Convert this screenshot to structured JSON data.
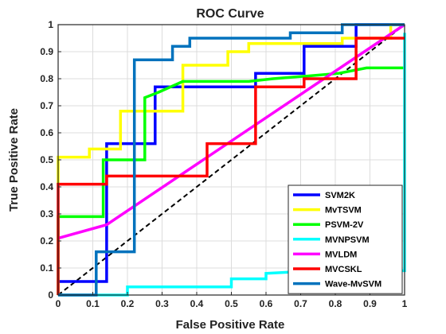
{
  "chart_data": {
    "type": "line",
    "title": "ROC Curve",
    "xlabel": "False Positive Rate",
    "ylabel": "True Positive Rate",
    "xlim": [
      0,
      1
    ],
    "ylim": [
      0,
      1
    ],
    "xticks": [
      0,
      0.1,
      0.2,
      0.3,
      0.4,
      0.5,
      0.6,
      0.7,
      0.8,
      0.9,
      1
    ],
    "yticks": [
      0,
      0.1,
      0.2,
      0.3,
      0.4,
      0.5,
      0.6,
      0.7,
      0.8,
      0.9,
      1
    ],
    "xtick_labels": [
      "0",
      "0.1",
      "0.2",
      "0.3",
      "0.4",
      "0.5",
      "0.6",
      "0.7",
      "0.8",
      "0.9",
      "1"
    ],
    "ytick_labels": [
      "0",
      "0.1",
      "0.2",
      "0.3",
      "0.4",
      "0.5",
      "0.6",
      "0.7",
      "0.8",
      "0.9",
      "1"
    ],
    "grid": true,
    "legend_position": "bottom-right",
    "diagonal": {
      "style": "dashed",
      "color": "#000000"
    },
    "series": [
      {
        "name": "SVM2K",
        "color": "#0000FF",
        "x": [
          0,
          0.14,
          0.14,
          0.28,
          0.28,
          0.57,
          0.57,
          0.71,
          0.71,
          0.86,
          0.86,
          1
        ],
        "y": [
          0.05,
          0.05,
          0.56,
          0.56,
          0.77,
          0.77,
          0.82,
          0.82,
          0.92,
          0.92,
          1,
          1
        ]
      },
      {
        "name": "MvTSVM",
        "color": "#FFFF00",
        "x": [
          0,
          0,
          0.09,
          0.09,
          0.18,
          0.18,
          0.36,
          0.36,
          0.49,
          0.49,
          0.55,
          0.55,
          0.82,
          0.82,
          0.96,
          0.96,
          1
        ],
        "y": [
          0.41,
          0.51,
          0.51,
          0.54,
          0.54,
          0.68,
          0.68,
          0.85,
          0.85,
          0.9,
          0.9,
          0.93,
          0.93,
          0.95,
          0.95,
          1,
          1
        ]
      },
      {
        "name": "PSVM-2V",
        "color": "#00FF00",
        "x": [
          0,
          0,
          0.13,
          0.13,
          0.25,
          0.25,
          0.29,
          0.36,
          0.55,
          0.62,
          0.72,
          0.81,
          0.89,
          1
        ],
        "y": [
          0,
          0.29,
          0.29,
          0.5,
          0.5,
          0.73,
          0.75,
          0.79,
          0.79,
          0.8,
          0.81,
          0.82,
          0.84,
          0.84
        ]
      },
      {
        "name": "MVNPSVM",
        "color": "#00FFFF",
        "x": [
          0,
          0.2,
          0.2,
          0.5,
          0.5,
          0.6,
          0.6,
          0.75,
          1,
          1,
          1
        ],
        "y": [
          0,
          0,
          0.03,
          0.03,
          0.06,
          0.06,
          0.08,
          0.09,
          0.09,
          0.2,
          0.97
        ]
      },
      {
        "name": "MVLDM",
        "color": "#FF00FF",
        "x": [
          0,
          0.14,
          1
        ],
        "y": [
          0.21,
          0.26,
          1
        ]
      },
      {
        "name": "MVCSKL",
        "color": "#FF0000",
        "x": [
          0,
          0,
          0,
          0.14,
          0.14,
          0.43,
          0.43,
          0.57,
          0.57,
          0.71,
          0.71,
          0.86,
          0.86,
          1
        ],
        "y": [
          0,
          0.41,
          0.41,
          0.41,
          0.44,
          0.44,
          0.56,
          0.56,
          0.77,
          0.77,
          0.8,
          0.8,
          0.95,
          0.95
        ]
      },
      {
        "name": "Wave-MvSVM",
        "color": "#0072BD",
        "x": [
          0,
          0.11,
          0.11,
          0.22,
          0.22,
          0.33,
          0.33,
          0.38,
          0.38,
          0.67,
          0.67,
          0.82,
          0.82,
          1
        ],
        "y": [
          0,
          0,
          0.16,
          0.16,
          0.87,
          0.87,
          0.92,
          0.92,
          0.95,
          0.95,
          0.97,
          0.97,
          1,
          1
        ]
      }
    ]
  }
}
